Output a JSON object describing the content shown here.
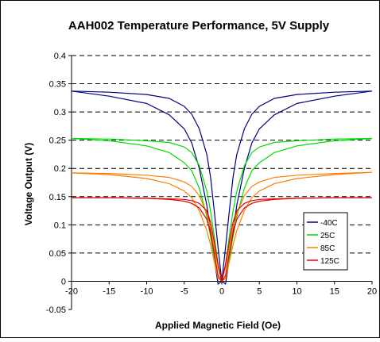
{
  "chart_data": {
    "type": "line",
    "title": "AAH002 Temperature Performance, 5V Supply",
    "xlabel": "Applied Magnetic Field (Oe)",
    "ylabel": "Voltage Output (V)",
    "xlim": [
      -20,
      20
    ],
    "ylim": [
      -0.05,
      0.4
    ],
    "x_ticks": [
      "-20",
      "-15",
      "-10",
      "-5",
      "0",
      "5",
      "10",
      "15",
      "20"
    ],
    "y_ticks": [
      "-0.05",
      "0",
      "0.05",
      "0.1",
      "0.15",
      "0.2",
      "0.25",
      "0.3",
      "0.35",
      "0.4"
    ],
    "grid": "horizontal dashed",
    "legend_position": "right-center",
    "series": [
      {
        "name": "-40C",
        "color": "#000080",
        "sweeps": [
          {
            "x": [
              -20,
              -15,
              -10,
              -7,
              -5,
              -4,
              -3,
              -2,
              -1.5,
              -1,
              -0.5,
              0,
              0.5,
              1,
              1.5,
              2,
              3,
              4,
              5,
              7,
              10,
              15,
              20
            ],
            "y": [
              0.337,
              0.335,
              0.331,
              0.324,
              0.31,
              0.296,
              0.27,
              0.225,
              0.185,
              0.125,
              0.06,
              0.0,
              -0.005,
              0.04,
              0.09,
              0.135,
              0.2,
              0.245,
              0.27,
              0.295,
              0.315,
              0.328,
              0.337
            ]
          },
          {
            "x": [
              -20,
              -15,
              -10,
              -7,
              -5,
              -4,
              -3,
              -2,
              -1.5,
              -1,
              -0.5,
              0,
              0.5,
              1,
              1.5,
              2,
              3,
              4,
              5,
              7,
              10,
              15,
              20
            ],
            "y": [
              0.337,
              0.328,
              0.315,
              0.295,
              0.27,
              0.245,
              0.2,
              0.135,
              0.09,
              0.04,
              -0.005,
              0.0,
              0.06,
              0.125,
              0.185,
              0.225,
              0.27,
              0.296,
              0.31,
              0.324,
              0.331,
              0.335,
              0.337
            ]
          }
        ]
      },
      {
        "name": "25C",
        "color": "#00dd00",
        "sweeps": [
          {
            "x": [
              -20,
              -15,
              -10,
              -7,
              -5,
              -4,
              -3,
              -2,
              -1.5,
              -1,
              -0.5,
              0,
              0.5,
              1,
              1.5,
              2,
              3,
              4,
              5,
              7,
              10,
              15,
              20
            ],
            "y": [
              0.253,
              0.252,
              0.249,
              0.246,
              0.238,
              0.228,
              0.205,
              0.16,
              0.125,
              0.08,
              0.03,
              0.0,
              0.005,
              0.04,
              0.08,
              0.115,
              0.165,
              0.196,
              0.21,
              0.228,
              0.24,
              0.249,
              0.253
            ]
          },
          {
            "x": [
              -20,
              -15,
              -10,
              -7,
              -5,
              -4,
              -3,
              -2,
              -1.5,
              -1,
              -0.5,
              0,
              0.5,
              1,
              1.5,
              2,
              3,
              4,
              5,
              7,
              10,
              15,
              20
            ],
            "y": [
              0.253,
              0.249,
              0.24,
              0.228,
              0.21,
              0.196,
              0.165,
              0.115,
              0.08,
              0.04,
              0.005,
              0.0,
              0.03,
              0.08,
              0.125,
              0.16,
              0.205,
              0.228,
              0.238,
              0.246,
              0.249,
              0.252,
              0.253
            ]
          }
        ]
      },
      {
        "name": "85C",
        "color": "#ff8000",
        "sweeps": [
          {
            "x": [
              -20,
              -15,
              -10,
              -7,
              -5,
              -4,
              -3,
              -2,
              -1.5,
              -1,
              -0.5,
              0,
              0.5,
              1,
              1.5,
              2,
              3,
              4,
              5,
              7,
              10,
              15,
              20
            ],
            "y": [
              0.192,
              0.191,
              0.188,
              0.184,
              0.176,
              0.168,
              0.152,
              0.12,
              0.095,
              0.06,
              0.025,
              0.0,
              0.005,
              0.035,
              0.065,
              0.09,
              0.125,
              0.148,
              0.16,
              0.173,
              0.182,
              0.189,
              0.193
            ]
          },
          {
            "x": [
              -20,
              -15,
              -10,
              -7,
              -5,
              -4,
              -3,
              -2,
              -1.5,
              -1,
              -0.5,
              0,
              0.5,
              1,
              1.5,
              2,
              3,
              4,
              5,
              7,
              10,
              15,
              20
            ],
            "y": [
              0.192,
              0.189,
              0.182,
              0.173,
              0.16,
              0.148,
              0.125,
              0.09,
              0.065,
              0.035,
              0.005,
              0.0,
              0.025,
              0.06,
              0.095,
              0.12,
              0.152,
              0.168,
              0.176,
              0.184,
              0.188,
              0.191,
              0.193
            ]
          }
        ]
      },
      {
        "name": "125C",
        "color": "#e00000",
        "sweeps": [
          {
            "x": [
              -20,
              -15,
              -10,
              -7,
              -5,
              -4,
              -3,
              -2,
              -1.5,
              -1,
              -0.5,
              0,
              0.5,
              1,
              1.5,
              2,
              3,
              4,
              5,
              7,
              10,
              15,
              20
            ],
            "y": [
              0.148,
              0.148,
              0.147,
              0.146,
              0.145,
              0.143,
              0.138,
              0.125,
              0.105,
              0.07,
              0.03,
              0.0,
              0.01,
              0.05,
              0.085,
              0.11,
              0.13,
              0.138,
              0.142,
              0.145,
              0.147,
              0.148,
              0.148
            ]
          },
          {
            "x": [
              -20,
              -15,
              -10,
              -7,
              -5,
              -4,
              -3,
              -2,
              -1.5,
              -1,
              -0.5,
              0,
              0.5,
              1,
              1.5,
              2,
              3,
              4,
              5,
              7,
              10,
              15,
              20
            ],
            "y": [
              0.148,
              0.148,
              0.147,
              0.145,
              0.142,
              0.138,
              0.13,
              0.11,
              0.085,
              0.05,
              0.01,
              0.0,
              0.03,
              0.07,
              0.105,
              0.125,
              0.138,
              0.143,
              0.145,
              0.146,
              0.147,
              0.148,
              0.148
            ]
          }
        ]
      }
    ]
  }
}
